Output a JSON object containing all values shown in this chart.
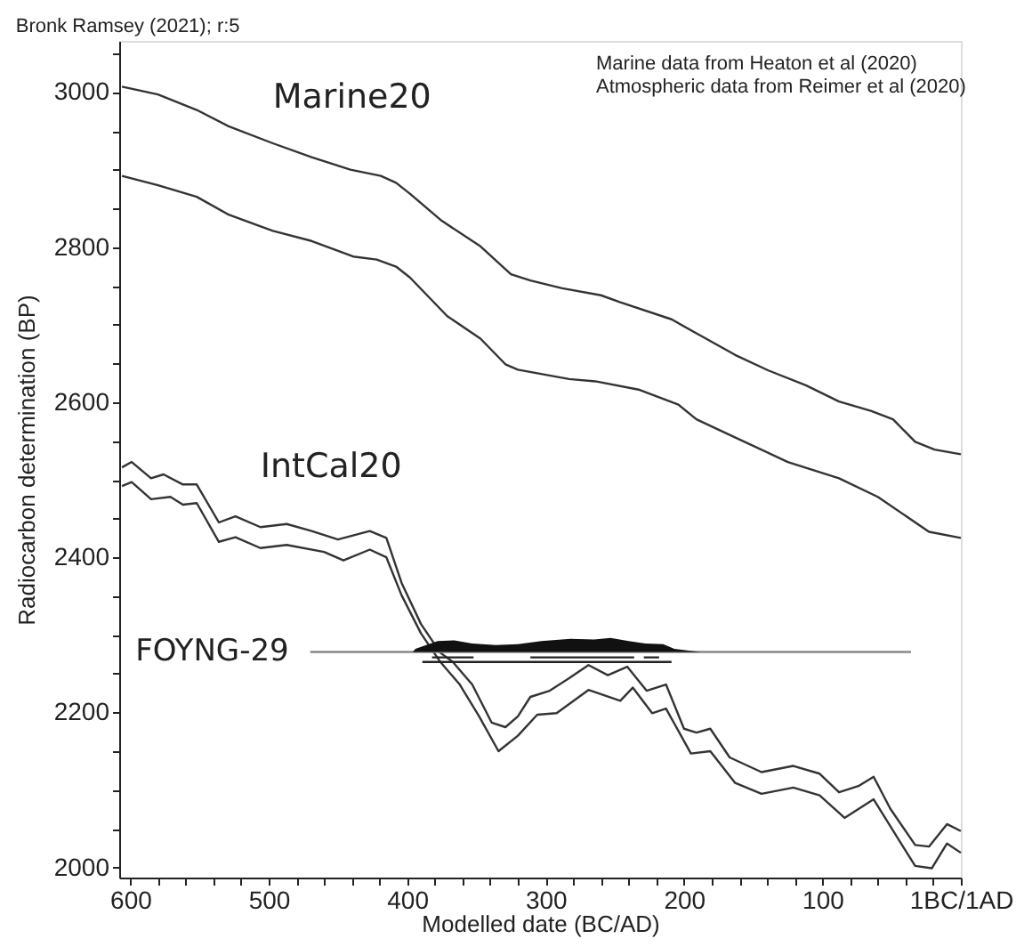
{
  "chart_data": {
    "type": "line",
    "title": "Bronk Ramsey (2021); r:5",
    "xlabel": "Modelled date (BC/AD)",
    "ylabel": "Radiocarbon determination (BP)",
    "xlim": [
      608,
      0
    ],
    "ylim": [
      1987,
      3066
    ],
    "xticks": [
      600,
      {
        "value": 580,
        "label": null
      },
      {
        "value": 560,
        "label": null
      },
      {
        "value": 540,
        "label": null
      },
      {
        "value": 520,
        "label": null
      },
      500,
      {
        "value": 480,
        "label": null
      },
      {
        "value": 460,
        "label": null
      },
      {
        "value": 440,
        "label": null
      },
      {
        "value": 420,
        "label": null
      },
      400,
      {
        "value": 380,
        "label": null
      },
      {
        "value": 360,
        "label": null
      },
      {
        "value": 340,
        "label": null
      },
      {
        "value": 320,
        "label": null
      },
      300,
      {
        "value": 280,
        "label": null
      },
      {
        "value": 260,
        "label": null
      },
      {
        "value": 240,
        "label": null
      },
      {
        "value": 220,
        "label": null
      },
      200,
      {
        "value": 180,
        "label": null
      },
      {
        "value": 160,
        "label": null
      },
      {
        "value": 140,
        "label": null
      },
      {
        "value": 120,
        "label": null
      },
      100,
      {
        "value": 80,
        "label": null
      },
      {
        "value": 60,
        "label": null
      },
      {
        "value": 40,
        "label": null
      },
      {
        "value": 20,
        "label": null
      },
      {
        "value": 0,
        "label": "1BC/1AD"
      }
    ],
    "yticks": [
      2000,
      {
        "value": 2050,
        "label": null
      },
      {
        "value": 2100,
        "label": null
      },
      {
        "value": 2150,
        "label": null
      },
      2200,
      {
        "value": 2250,
        "label": null
      },
      {
        "value": 2300,
        "label": null
      },
      {
        "value": 2350,
        "label": null
      },
      2400,
      {
        "value": 2450,
        "label": null
      },
      {
        "value": 2500,
        "label": null
      },
      {
        "value": 2550,
        "label": null
      },
      2600,
      {
        "value": 2650,
        "label": null
      },
      {
        "value": 2700,
        "label": null
      },
      {
        "value": 2750,
        "label": null
      },
      2800,
      {
        "value": 2850,
        "label": null
      },
      {
        "value": 2900,
        "label": null
      },
      {
        "value": 2950,
        "label": null
      },
      3000,
      {
        "value": 3050,
        "label": null
      }
    ],
    "grid": false,
    "line_style": "solid",
    "series": [
      {
        "name": "Marine20",
        "color": "#333333",
        "x": [
          606,
          580,
          552,
          529,
          497,
          469,
          441,
          419,
          408,
          398,
          375,
          347,
          325,
          311,
          288,
          260,
          246,
          209,
          191,
          163,
          139,
          112,
          88,
          65,
          49,
          33,
          19,
          0
        ],
        "values": [
          3007,
          2997,
          2977,
          2956,
          2934,
          2916,
          2900,
          2892,
          2883,
          2869,
          2834,
          2801,
          2765,
          2757,
          2747,
          2738,
          2729,
          2707,
          2689,
          2661,
          2641,
          2622,
          2601,
          2589,
          2578,
          2549,
          2539,
          2533
        ]
      },
      {
        "color": "#333333",
        "x": [
          606,
          580,
          552,
          529,
          497,
          469,
          439,
          422,
          408,
          398,
          371,
          347,
          329,
          320,
          283,
          264,
          232,
          204,
          191,
          167,
          125,
          88,
          60,
          23,
          0
        ],
        "values": [
          2892,
          2880,
          2865,
          2842,
          2821,
          2808,
          2788,
          2784,
          2775,
          2761,
          2711,
          2682,
          2649,
          2642,
          2630,
          2627,
          2616,
          2597,
          2578,
          2558,
          2523,
          2502,
          2478,
          2433,
          2425
        ]
      },
      {
        "name": "IntCal20",
        "color": "#333333",
        "x": [
          606,
          599,
          585,
          576,
          562,
          552,
          536,
          524,
          506,
          487,
          469,
          450,
          427,
          415,
          404,
          390,
          376,
          367,
          353,
          339,
          329,
          320,
          311,
          297,
          283,
          269,
          255,
          241,
          227,
          213,
          200,
          191,
          181,
          167,
          144,
          121,
          102,
          88,
          74,
          63,
          51,
          33,
          23,
          10,
          0
        ],
        "values": [
          2516,
          2523,
          2502,
          2507,
          2494,
          2494,
          2445,
          2453,
          2439,
          2443,
          2434,
          2423,
          2434,
          2425,
          2367,
          2314,
          2277,
          2265,
          2236,
          2187,
          2181,
          2195,
          2220,
          2228,
          2244,
          2261,
          2248,
          2259,
          2228,
          2236,
          2179,
          2174,
          2179,
          2142,
          2123,
          2131,
          2121,
          2097,
          2105,
          2117,
          2076,
          2029,
          2027,
          2056,
          2047
        ]
      },
      {
        "color": "#333333",
        "x": [
          606,
          599,
          585,
          571,
          562,
          552,
          536,
          524,
          506,
          487,
          460,
          446,
          427,
          415,
          404,
          390,
          376,
          362,
          348,
          334,
          320,
          306,
          292,
          269,
          246,
          237,
          223,
          213,
          195,
          181,
          163,
          144,
          121,
          102,
          84,
          63,
          46,
          33,
          21,
          10,
          0
        ],
        "values": [
          2492,
          2497,
          2475,
          2478,
          2468,
          2470,
          2420,
          2426,
          2412,
          2416,
          2407,
          2396,
          2410,
          2400,
          2351,
          2302,
          2265,
          2236,
          2195,
          2150,
          2170,
          2197,
          2199,
          2229,
          2215,
          2232,
          2199,
          2205,
          2147,
          2150,
          2109,
          2095,
          2103,
          2093,
          2064,
          2088,
          2039,
          2002,
          1999,
          2031,
          2019
        ]
      },
      {
        "name": "FOYNG-29",
        "color": "#888888",
        "x": [
          470,
          36
        ],
        "values": [
          2278,
          2278
        ]
      },
      {
        "type": "area",
        "color": "#111111",
        "x": [
          396,
          394,
          378,
          366,
          353,
          336,
          320,
          303,
          282,
          265,
          253,
          240,
          228,
          215,
          207,
          194,
          188
        ],
        "values": [
          2278,
          2282,
          2292,
          2293,
          2289,
          2287,
          2288,
          2292,
          2295,
          2294,
          2296,
          2292,
          2289,
          2288,
          2282,
          2279,
          2278
        ]
      },
      {
        "color": "#222222",
        "x": [
          382,
          352,
          331,
          311,
          236,
          232,
          229,
          218
        ],
        "values": [
          2271,
          2271,
          null,
          2271,
          2271,
          null,
          2271,
          2271
        ]
      },
      {
        "color": "#222222",
        "x": [
          389,
          209
        ],
        "values": [
          2265,
          2265
        ]
      }
    ],
    "annotations": [
      "Marine data from Heaton et al (2020)",
      "Atmospheric data from Reimer et al (2020)"
    ]
  }
}
